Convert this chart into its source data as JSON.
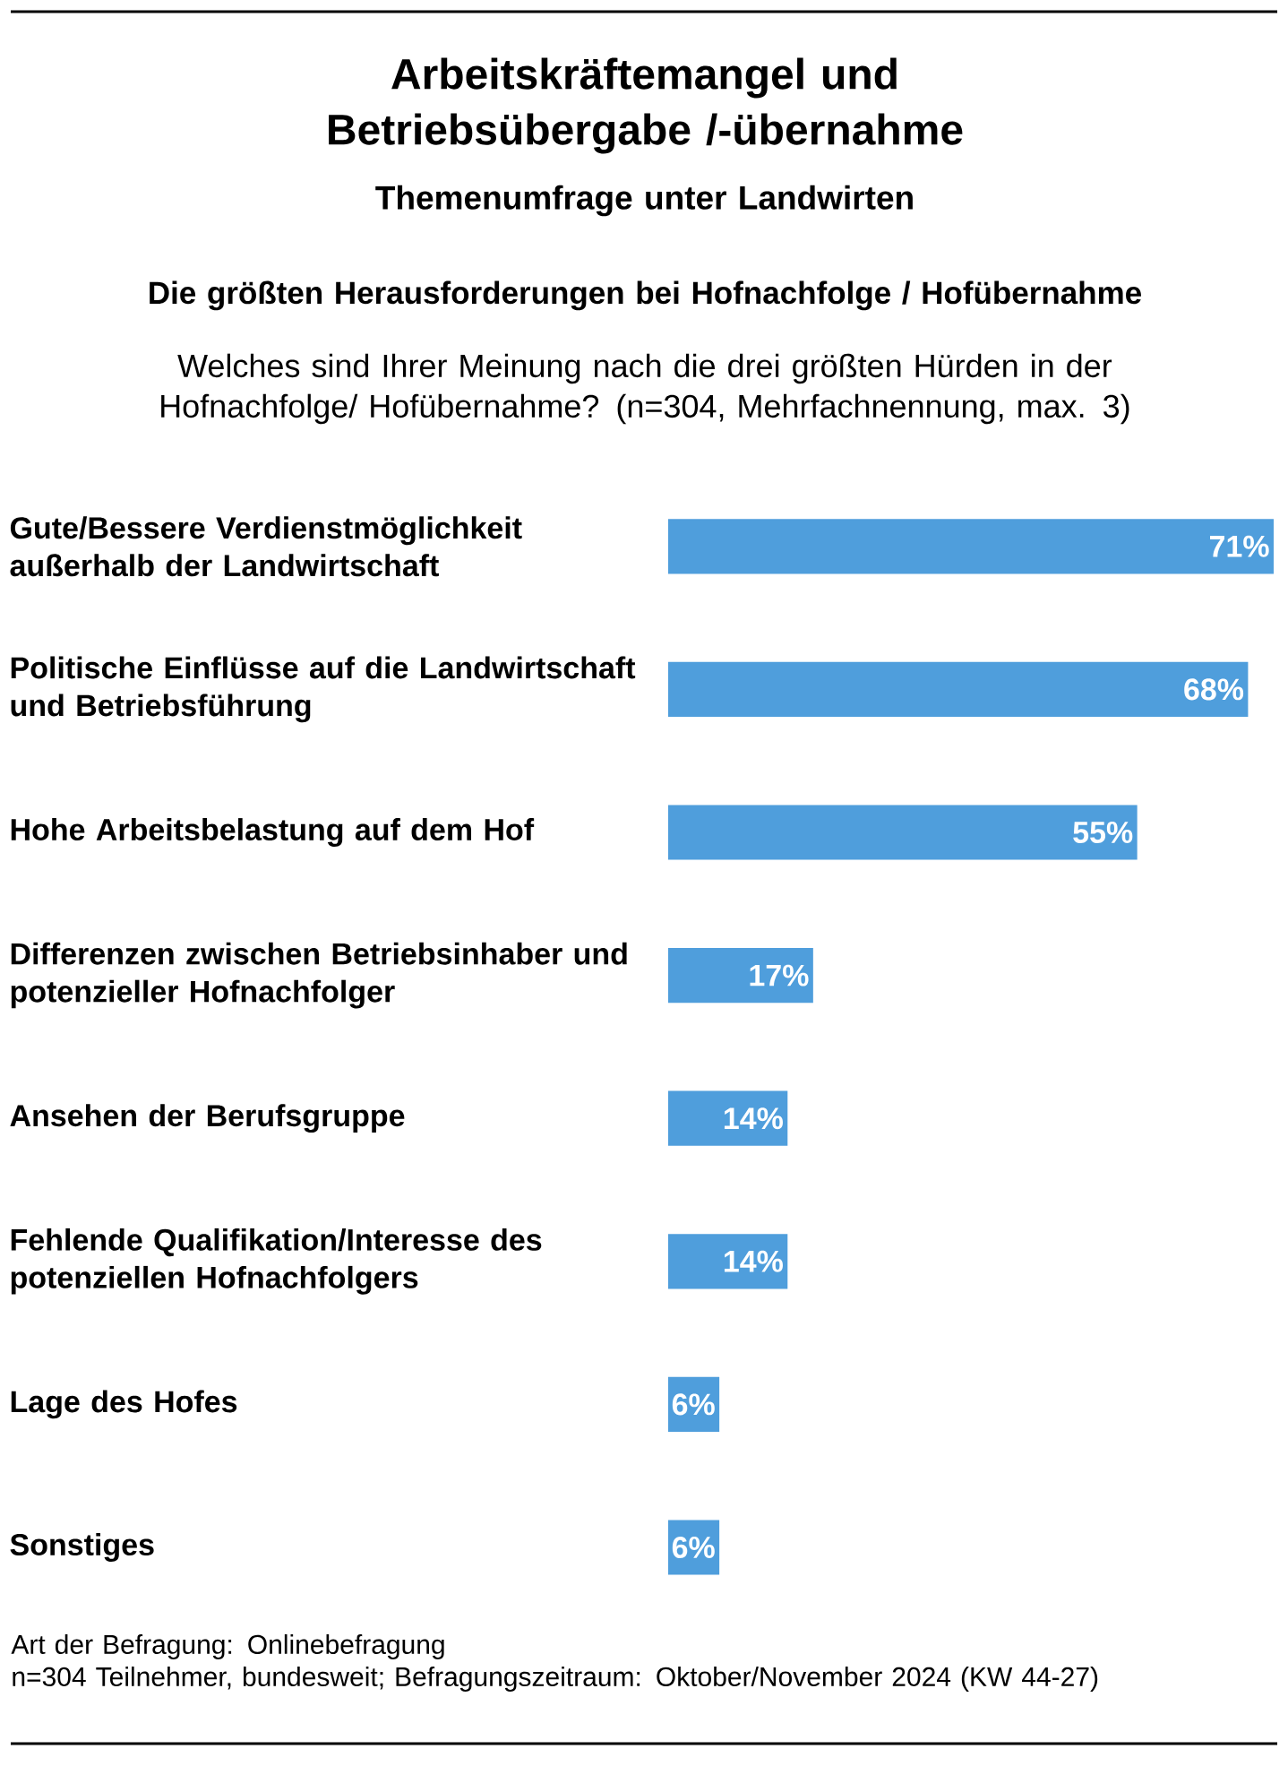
{
  "chart_data": {
    "type": "bar",
    "orientation": "horizontal",
    "title": "Arbeitskräftemangel und Betriebsübergabe /-übernahme",
    "subtitle": "Themenumfrage unter Landwirten",
    "categories": [
      "Gute/Bessere Verdienstmöglichkeit außerhalb der Landwirtschaft",
      "Politische Einflüsse auf die Landwirtschaft und Betriebsführung",
      "Hohe Arbeitsbelastung auf dem Hof",
      "Differenzen zwischen Betriebsinhaber und potenzieller Hofnachfolger",
      "Ansehen der Berufsgruppe",
      "Fehlende Qualifikation/Interesse des potenziellen Hofnachfolgers",
      "Lage des Hofes",
      "Sonstiges"
    ],
    "values": [
      71,
      68,
      55,
      17,
      14,
      14,
      6,
      6
    ],
    "value_labels": [
      "71%",
      "68%",
      "55%",
      "17%",
      "14%",
      "14%",
      "6%",
      "6%"
    ],
    "color": "#4f9edc",
    "annotations": [
      "Die größten Herausforderungen bei Hofnachfolge / Hofübernahme",
      "Welches sind Ihrer Meinung nach die drei größten Hürden in der Hofnachfolge/ Hofübernahme? (n=304, Mehrfachnennung, max. 3)",
      "Art der Befragung: Onlinebefragung",
      "n=304 Teilnehmer, bundesweit; Befragungszeitraum: Oktober/November 2024 (KW 44-27)"
    ]
  }
}
